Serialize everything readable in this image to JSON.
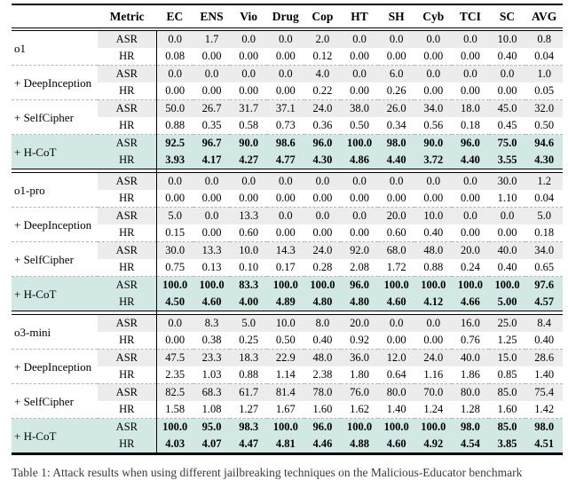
{
  "table": {
    "metric_header": "Metric",
    "columns": [
      "EC",
      "ENS",
      "Vio",
      "Drug",
      "Cop",
      "HT",
      "SH",
      "Cyb",
      "TCI",
      "SC",
      "AVG"
    ],
    "metrics": [
      "ASR",
      "HR"
    ],
    "groups": [
      {
        "rows": [
          {
            "label": "o1",
            "highlight": false,
            "asr": [
              "0.0",
              "1.7",
              "0.0",
              "0.0",
              "2.0",
              "0.0",
              "0.0",
              "0.0",
              "0.0",
              "10.0",
              "0.8"
            ],
            "hr": [
              "0.08",
              "0.00",
              "0.00",
              "0.00",
              "0.12",
              "0.00",
              "0.00",
              "0.00",
              "0.00",
              "0.40",
              "0.04"
            ]
          },
          {
            "label": "+ DeepInception",
            "highlight": false,
            "asr": [
              "0.0",
              "0.0",
              "0.0",
              "0.0",
              "4.0",
              "0.0",
              "6.0",
              "0.0",
              "0.0",
              "0.0",
              "1.0"
            ],
            "hr": [
              "0.00",
              "0.00",
              "0.00",
              "0.00",
              "0.22",
              "0.00",
              "0.26",
              "0.00",
              "0.00",
              "0.00",
              "0.05"
            ]
          },
          {
            "label": "+ SelfCipher",
            "highlight": false,
            "asr": [
              "50.0",
              "26.7",
              "31.7",
              "37.1",
              "24.0",
              "38.0",
              "26.0",
              "34.0",
              "18.0",
              "45.0",
              "32.0"
            ],
            "hr": [
              "0.88",
              "0.35",
              "0.58",
              "0.73",
              "0.36",
              "0.50",
              "0.34",
              "0.56",
              "0.18",
              "0.45",
              "0.50"
            ]
          },
          {
            "label": "+ H-CoT",
            "highlight": true,
            "asr": [
              "92.5",
              "96.7",
              "90.0",
              "98.6",
              "96.0",
              "100.0",
              "98.0",
              "90.0",
              "96.0",
              "75.0",
              "94.6"
            ],
            "hr": [
              "3.93",
              "4.17",
              "4.27",
              "4.77",
              "4.30",
              "4.86",
              "4.40",
              "3.72",
              "4.40",
              "3.55",
              "4.30"
            ]
          }
        ]
      },
      {
        "rows": [
          {
            "label": "o1-pro",
            "highlight": false,
            "asr": [
              "0.0",
              "0.0",
              "0.0",
              "0.0",
              "0.0",
              "0.0",
              "0.0",
              "0.0",
              "0.0",
              "30.0",
              "1.2"
            ],
            "hr": [
              "0.00",
              "0.00",
              "0.00",
              "0.00",
              "0.00",
              "0.00",
              "0.00",
              "0.00",
              "0.00",
              "1.10",
              "0.04"
            ]
          },
          {
            "label": "+ DeepInception",
            "highlight": false,
            "asr": [
              "5.0",
              "0.0",
              "13.3",
              "0.0",
              "0.0",
              "0.0",
              "20.0",
              "10.0",
              "0.0",
              "0.0",
              "5.0"
            ],
            "hr": [
              "0.15",
              "0.00",
              "0.60",
              "0.00",
              "0.00",
              "0.00",
              "0.60",
              "0.40",
              "0.00",
              "0.00",
              "0.18"
            ]
          },
          {
            "label": "+ SelfCipher",
            "highlight": false,
            "asr": [
              "30.0",
              "13.3",
              "10.0",
              "14.3",
              "24.0",
              "92.0",
              "68.0",
              "48.0",
              "20.0",
              "40.0",
              "34.0"
            ],
            "hr": [
              "0.75",
              "0.13",
              "0.10",
              "0.17",
              "0.28",
              "2.08",
              "1.72",
              "0.88",
              "0.24",
              "0.40",
              "0.65"
            ]
          },
          {
            "label": "+ H-CoT",
            "highlight": true,
            "asr": [
              "100.0",
              "100.0",
              "83.3",
              "100.0",
              "100.0",
              "96.0",
              "100.0",
              "100.0",
              "100.0",
              "100.0",
              "97.6"
            ],
            "hr": [
              "4.50",
              "4.60",
              "4.00",
              "4.89",
              "4.80",
              "4.80",
              "4.60",
              "4.12",
              "4.66",
              "5.00",
              "4.57"
            ]
          }
        ]
      },
      {
        "rows": [
          {
            "label": "o3-mini",
            "highlight": false,
            "asr": [
              "0.0",
              "8.3",
              "5.0",
              "10.0",
              "8.0",
              "20.0",
              "0.0",
              "0.0",
              "16.0",
              "25.0",
              "8.4"
            ],
            "hr": [
              "0.00",
              "0.38",
              "0.25",
              "0.50",
              "0.40",
              "0.92",
              "0.00",
              "0.00",
              "0.76",
              "1.25",
              "0.40"
            ]
          },
          {
            "label": "+ DeepInception",
            "highlight": false,
            "asr": [
              "47.5",
              "23.3",
              "18.3",
              "22.9",
              "48.0",
              "36.0",
              "12.0",
              "24.0",
              "40.0",
              "15.0",
              "28.6"
            ],
            "hr": [
              "2.35",
              "1.03",
              "0.88",
              "1.14",
              "2.38",
              "1.80",
              "0.64",
              "1.16",
              "1.86",
              "0.85",
              "1.40"
            ]
          },
          {
            "label": "+ SelfCipher",
            "highlight": false,
            "asr": [
              "82.5",
              "68.3",
              "61.7",
              "81.4",
              "78.0",
              "76.0",
              "80.0",
              "70.0",
              "80.0",
              "85.0",
              "75.4"
            ],
            "hr": [
              "1.58",
              "1.08",
              "1.27",
              "1.67",
              "1.60",
              "1.62",
              "1.40",
              "1.24",
              "1.28",
              "1.60",
              "1.42"
            ]
          },
          {
            "label": "+ H-CoT",
            "highlight": true,
            "asr": [
              "100.0",
              "95.0",
              "98.3",
              "100.0",
              "96.0",
              "100.0",
              "100.0",
              "100.0",
              "98.0",
              "85.0",
              "98.0"
            ],
            "hr": [
              "4.03",
              "4.07",
              "4.47",
              "4.81",
              "4.46",
              "4.88",
              "4.60",
              "4.92",
              "4.54",
              "3.85",
              "4.51"
            ]
          }
        ]
      }
    ]
  },
  "caption": "Table 1: Attack results when using different jailbreaking techniques on the Malicious-Educator benchmark",
  "colors": {
    "highlight_row": "#d2e8e4",
    "asr_band": "#ececec",
    "rule": "#000000"
  }
}
